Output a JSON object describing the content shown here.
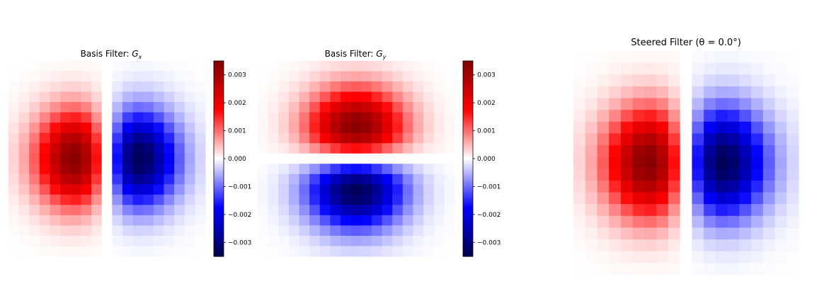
{
  "chart_data": [
    {
      "type": "heatmap",
      "title_prefix": "Basis Filter: ",
      "title_symbol": "G",
      "title_subscript": "x",
      "grid_size": 19,
      "orientation": "x",
      "colormap": "seismic",
      "vmin": -0.0035,
      "vmax": 0.0035,
      "grid": false,
      "colorbar": {
        "ticks": [
          0.003,
          0.002,
          0.001,
          0.0,
          -0.001,
          -0.002,
          -0.003
        ],
        "tick_labels": [
          "0.003",
          "0.002",
          "0.001",
          "0.000",
          "−0.001",
          "−0.002",
          "−0.003"
        ]
      }
    },
    {
      "type": "heatmap",
      "title_prefix": "Basis Filter: ",
      "title_symbol": "G",
      "title_subscript": "y",
      "grid_size": 19,
      "orientation": "y",
      "colormap": "seismic",
      "vmin": -0.0035,
      "vmax": 0.0035,
      "grid": false,
      "colorbar": {
        "ticks": [
          0.003,
          0.002,
          0.001,
          0.0,
          -0.001,
          -0.002,
          -0.003
        ],
        "tick_labels": [
          "0.003",
          "0.002",
          "0.001",
          "0.000",
          "−0.001",
          "−0.002",
          "−0.003"
        ]
      }
    },
    {
      "type": "heatmap",
      "title": "Steered Filter (θ = 0.0°)",
      "grid_size": 19,
      "orientation": "x",
      "colormap": "seismic",
      "vmin": -0.0035,
      "vmax": 0.0035,
      "grid": false
    }
  ]
}
